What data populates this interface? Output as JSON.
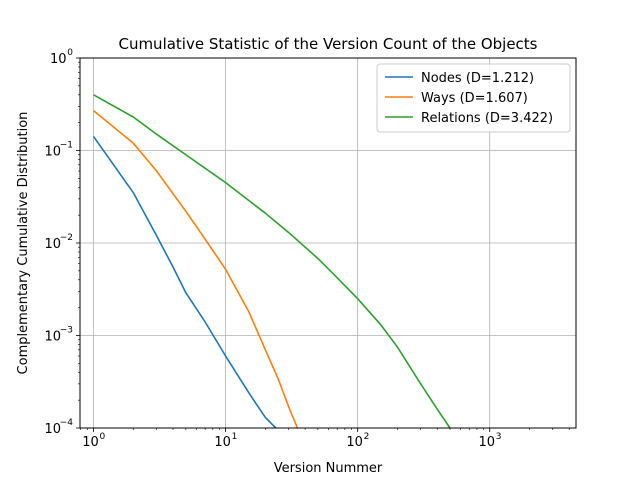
{
  "chart_data": {
    "type": "line",
    "title": "Cumulative Statistic of the Version Count of the Objects",
    "xlabel": "Version Nummer",
    "ylabel": "Complementary Cumulative Distribution",
    "xscale": "log",
    "yscale": "log",
    "xlim": [
      0.79,
      4500
    ],
    "ylim": [
      0.0001,
      1
    ],
    "grid": true,
    "legend_position": "upper right",
    "x_ticks": [
      {
        "value": 1,
        "base": "10",
        "exp": "0"
      },
      {
        "value": 10,
        "base": "10",
        "exp": "1"
      },
      {
        "value": 100,
        "base": "10",
        "exp": "2"
      },
      {
        "value": 1000,
        "base": "10",
        "exp": "3"
      }
    ],
    "y_ticks": [
      {
        "value": 0.0001,
        "base": "10",
        "exp": "−4"
      },
      {
        "value": 0.001,
        "base": "10",
        "exp": "−3"
      },
      {
        "value": 0.01,
        "base": "10",
        "exp": "−2"
      },
      {
        "value": 0.1,
        "base": "10",
        "exp": "−1"
      },
      {
        "value": 1,
        "base": "10",
        "exp": "0"
      }
    ],
    "series": [
      {
        "name": "Nodes (D=1.212)",
        "color": "#1f77b4",
        "x": [
          1,
          2,
          3,
          4,
          5,
          7,
          10,
          15,
          20,
          24
        ],
        "y": [
          0.142,
          0.035,
          0.012,
          0.0055,
          0.0029,
          0.0014,
          0.0006,
          0.00024,
          0.00013,
          0.0001
        ]
      },
      {
        "name": "Ways (D=1.607)",
        "color": "#ff7f0e",
        "x": [
          1,
          2,
          3,
          5,
          7,
          10,
          15,
          20,
          25,
          30,
          35
        ],
        "y": [
          0.27,
          0.12,
          0.06,
          0.022,
          0.011,
          0.0052,
          0.0018,
          0.0007,
          0.00034,
          0.00017,
          0.0001
        ]
      },
      {
        "name": "Relations (D=3.422)",
        "color": "#2ca02c",
        "x": [
          1,
          2,
          3,
          5,
          10,
          20,
          30,
          50,
          70,
          100,
          150,
          200,
          300,
          400,
          500
        ],
        "y": [
          0.4,
          0.23,
          0.15,
          0.09,
          0.045,
          0.021,
          0.013,
          0.0068,
          0.0042,
          0.0025,
          0.0013,
          0.00075,
          0.0003,
          0.00016,
          0.0001
        ]
      }
    ]
  }
}
